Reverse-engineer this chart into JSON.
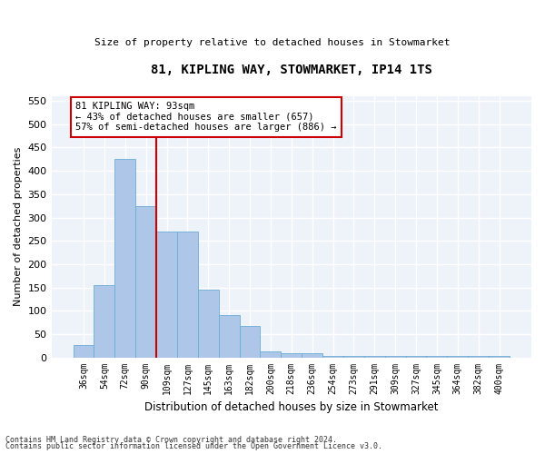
{
  "title1": "81, KIPLING WAY, STOWMARKET, IP14 1TS",
  "title2": "Size of property relative to detached houses in Stowmarket",
  "xlabel": "Distribution of detached houses by size in Stowmarket",
  "ylabel": "Number of detached properties",
  "categories": [
    "36sqm",
    "54sqm",
    "72sqm",
    "90sqm",
    "109sqm",
    "127sqm",
    "145sqm",
    "163sqm",
    "182sqm",
    "200sqm",
    "218sqm",
    "236sqm",
    "254sqm",
    "273sqm",
    "291sqm",
    "309sqm",
    "327sqm",
    "345sqm",
    "364sqm",
    "382sqm",
    "400sqm"
  ],
  "values": [
    27,
    155,
    425,
    325,
    270,
    270,
    145,
    90,
    68,
    12,
    9,
    9,
    4,
    4,
    4,
    4,
    4,
    4,
    4,
    4,
    4
  ],
  "bar_color": "#aec6e8",
  "bar_edge_color": "#6aadd5",
  "vline_x": 3.5,
  "vline_color": "#cc0000",
  "annotation_text": "81 KIPLING WAY: 93sqm\n← 43% of detached houses are smaller (657)\n57% of semi-detached houses are larger (886) →",
  "annotation_box_color": "#ffffff",
  "annotation_box_edge": "#cc0000",
  "ylim": [
    0,
    560
  ],
  "yticks": [
    0,
    50,
    100,
    150,
    200,
    250,
    300,
    350,
    400,
    450,
    500,
    550
  ],
  "background_color": "#eef2f9",
  "grid_color": "#ffffff",
  "footer1": "Contains HM Land Registry data © Crown copyright and database right 2024.",
  "footer2": "Contains public sector information licensed under the Open Government Licence v3.0."
}
